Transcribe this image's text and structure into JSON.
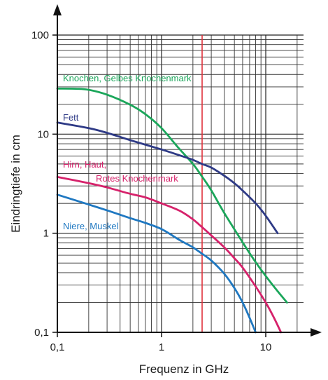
{
  "chart_data": {
    "type": "line",
    "title": "",
    "xlabel": "Frequenz in GHz",
    "ylabel": "Eindringtiefe in cm",
    "x_scale": "log",
    "y_scale": "log",
    "xlim": [
      0.1,
      20
    ],
    "ylim": [
      0.1,
      100
    ],
    "grid": true,
    "x_ticks": [
      {
        "value": 0.1,
        "label": "0,1"
      },
      {
        "value": 1,
        "label": "1"
      },
      {
        "value": 10,
        "label": "10"
      }
    ],
    "y_ticks": [
      {
        "value": 0.1,
        "label": "0,1"
      },
      {
        "value": 1,
        "label": "1"
      },
      {
        "value": 10,
        "label": "10"
      },
      {
        "value": 100,
        "label": "100"
      }
    ],
    "marker_line": {
      "x": 2.45,
      "color": "#e0303a"
    },
    "series": [
      {
        "name": "Knochen, Gelbes Knochenmark",
        "color": "#1aa65a",
        "x": [
          0.1,
          0.15,
          0.2,
          0.3,
          0.5,
          0.7,
          1.0,
          1.4,
          2.0,
          2.45,
          3.0,
          4.0,
          6.0,
          8.0,
          10.0,
          13.0,
          16.0
        ],
        "values": [
          28.8,
          28.7,
          28,
          25,
          19.8,
          15.9,
          11.5,
          7.6,
          5.0,
          3.72,
          2.71,
          1.6,
          0.81,
          0.51,
          0.37,
          0.26,
          0.2
        ]
      },
      {
        "name": "Fett",
        "color": "#2e3a86",
        "x": [
          0.1,
          0.2,
          0.3,
          0.5,
          1.0,
          1.5,
          2.0,
          2.45,
          3.0,
          4.0,
          5.0,
          6.0,
          8.0,
          10.0,
          13.0
        ],
        "values": [
          13.1,
          11.5,
          10.3,
          8.7,
          7.0,
          6.1,
          5.5,
          5.0,
          4.6,
          3.8,
          3.2,
          2.7,
          2.0,
          1.5,
          1.0
        ]
      },
      {
        "name": "Hirn, Haut, Rotes Knochenmark",
        "color": "#d6226b",
        "x": [
          0.1,
          0.2,
          0.3,
          0.5,
          0.7,
          1.0,
          1.5,
          2.0,
          2.45,
          3.0,
          4.0,
          5.0,
          6.0,
          8.0,
          10.0,
          12.0,
          14.0
        ],
        "values": [
          3.7,
          3.2,
          2.9,
          2.5,
          2.3,
          2.0,
          1.68,
          1.38,
          1.15,
          0.95,
          0.72,
          0.56,
          0.45,
          0.29,
          0.2,
          0.14,
          0.1
        ]
      },
      {
        "name": "Niere, Muskel",
        "color": "#1f78c1",
        "x": [
          0.1,
          0.2,
          0.3,
          0.5,
          0.7,
          1.0,
          1.5,
          2.0,
          2.45,
          3.0,
          4.0,
          5.0,
          6.0,
          7.0,
          8.0
        ],
        "values": [
          2.45,
          1.95,
          1.7,
          1.42,
          1.27,
          1.1,
          0.85,
          0.72,
          0.62,
          0.53,
          0.39,
          0.28,
          0.2,
          0.14,
          0.1
        ]
      }
    ],
    "series_labels": [
      {
        "lines": [
          "Knochen, Gelbes Knochenmark"
        ],
        "color": "#1aa65a"
      },
      {
        "lines": [
          "Fett"
        ],
        "color": "#2e3a86"
      },
      {
        "lines": [
          "Hirn, Haut,",
          "Rotes Knochenmark"
        ],
        "color": "#d6226b"
      },
      {
        "lines": [
          "Niere, Muskel"
        ],
        "color": "#1f78c1"
      }
    ]
  }
}
